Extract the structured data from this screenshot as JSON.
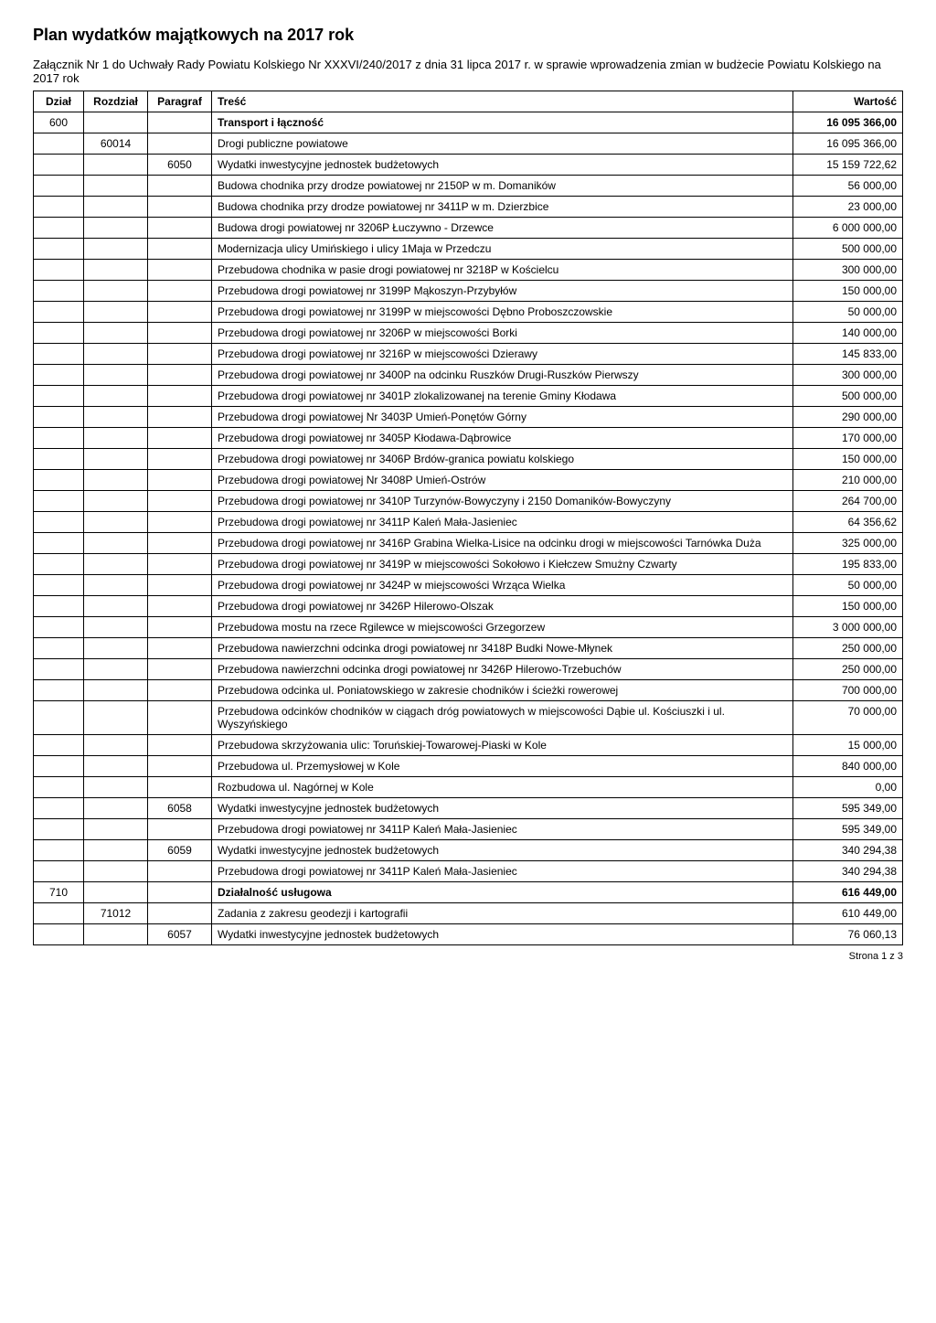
{
  "title": "Plan wydatków majątkowych na 2017 rok",
  "subtitle": "Załącznik Nr 1 do Uchwały Rady Powiatu Kolskiego Nr XXXVI/240/2017 z dnia 31 lipca 2017 r. w sprawie wprowadzenia zmian w budżecie Powiatu Kolskiego na 2017 rok",
  "headers": {
    "dzial": "Dział",
    "rozdzial": "Rozdział",
    "paragraf": "Paragraf",
    "tresc": "Treść",
    "wartosc": "Wartość"
  },
  "rows": [
    {
      "dzial": "600",
      "rozdzial": "",
      "paragraf": "",
      "tresc": "Transport i łączność",
      "wartosc": "16 095 366,00",
      "bold": true
    },
    {
      "dzial": "",
      "rozdzial": "60014",
      "paragraf": "",
      "tresc": "Drogi publiczne powiatowe",
      "wartosc": "16 095 366,00"
    },
    {
      "dzial": "",
      "rozdzial": "",
      "paragraf": "6050",
      "tresc": "Wydatki inwestycyjne jednostek budżetowych",
      "wartosc": "15 159 722,62"
    },
    {
      "dzial": "",
      "rozdzial": "",
      "paragraf": "",
      "tresc": "Budowa chodnika przy drodze powiatowej nr 2150P w m. Domaników",
      "wartosc": "56 000,00"
    },
    {
      "dzial": "",
      "rozdzial": "",
      "paragraf": "",
      "tresc": "Budowa chodnika przy drodze powiatowej nr 3411P w m. Dzierzbice",
      "wartosc": "23 000,00"
    },
    {
      "dzial": "",
      "rozdzial": "",
      "paragraf": "",
      "tresc": "Budowa drogi powiatowej nr 3206P Łuczywno - Drzewce",
      "wartosc": "6 000 000,00"
    },
    {
      "dzial": "",
      "rozdzial": "",
      "paragraf": "",
      "tresc": "Modernizacja ulicy Umińskiego i ulicy 1Maja w Przedczu",
      "wartosc": "500 000,00"
    },
    {
      "dzial": "",
      "rozdzial": "",
      "paragraf": "",
      "tresc": "Przebudowa chodnika w pasie drogi powiatowej nr 3218P w Kościelcu",
      "wartosc": "300 000,00"
    },
    {
      "dzial": "",
      "rozdzial": "",
      "paragraf": "",
      "tresc": "Przebudowa drogi powiatowej nr 3199P Mąkoszyn-Przybyłów",
      "wartosc": "150 000,00"
    },
    {
      "dzial": "",
      "rozdzial": "",
      "paragraf": "",
      "tresc": "Przebudowa drogi powiatowej nr 3199P w miejscowości Dębno Proboszczowskie",
      "wartosc": "50 000,00"
    },
    {
      "dzial": "",
      "rozdzial": "",
      "paragraf": "",
      "tresc": "Przebudowa drogi powiatowej nr 3206P w miejscowości Borki",
      "wartosc": "140 000,00"
    },
    {
      "dzial": "",
      "rozdzial": "",
      "paragraf": "",
      "tresc": "Przebudowa drogi powiatowej nr 3216P w miejscowości Dzierawy",
      "wartosc": "145 833,00"
    },
    {
      "dzial": "",
      "rozdzial": "",
      "paragraf": "",
      "tresc": "Przebudowa drogi powiatowej nr 3400P na odcinku Ruszków Drugi-Ruszków Pierwszy",
      "wartosc": "300 000,00"
    },
    {
      "dzial": "",
      "rozdzial": "",
      "paragraf": "",
      "tresc": "Przebudowa drogi powiatowej nr 3401P zlokalizowanej na terenie Gminy Kłodawa",
      "wartosc": "500 000,00"
    },
    {
      "dzial": "",
      "rozdzial": "",
      "paragraf": "",
      "tresc": "Przebudowa drogi powiatowej Nr 3403P Umień-Ponętów Górny",
      "wartosc": "290 000,00"
    },
    {
      "dzial": "",
      "rozdzial": "",
      "paragraf": "",
      "tresc": "Przebudowa drogi powiatowej nr 3405P Kłodawa-Dąbrowice",
      "wartosc": "170 000,00"
    },
    {
      "dzial": "",
      "rozdzial": "",
      "paragraf": "",
      "tresc": "Przebudowa drogi powiatowej nr 3406P Brdów-granica powiatu kolskiego",
      "wartosc": "150 000,00"
    },
    {
      "dzial": "",
      "rozdzial": "",
      "paragraf": "",
      "tresc": "Przebudowa drogi powiatowej Nr 3408P Umień-Ostrów",
      "wartosc": "210 000,00"
    },
    {
      "dzial": "",
      "rozdzial": "",
      "paragraf": "",
      "tresc": "Przebudowa drogi powiatowej nr 3410P Turzynów-Bowyczyny i 2150 Domaników-Bowyczyny",
      "wartosc": "264 700,00"
    },
    {
      "dzial": "",
      "rozdzial": "",
      "paragraf": "",
      "tresc": "Przebudowa drogi powiatowej nr 3411P Kaleń Mała-Jasieniec",
      "wartosc": "64 356,62"
    },
    {
      "dzial": "",
      "rozdzial": "",
      "paragraf": "",
      "tresc": "Przebudowa drogi powiatowej nr 3416P Grabina Wielka-Lisice na odcinku drogi w miejscowości Tarnówka Duża",
      "wartosc": "325 000,00"
    },
    {
      "dzial": "",
      "rozdzial": "",
      "paragraf": "",
      "tresc": "Przebudowa drogi powiatowej nr 3419P w miejscowości Sokołowo i Kiełczew Smużny Czwarty",
      "wartosc": "195 833,00"
    },
    {
      "dzial": "",
      "rozdzial": "",
      "paragraf": "",
      "tresc": "Przebudowa drogi powiatowej nr 3424P w miejscowości Wrząca Wielka",
      "wartosc": "50 000,00"
    },
    {
      "dzial": "",
      "rozdzial": "",
      "paragraf": "",
      "tresc": "Przebudowa drogi powiatowej nr 3426P Hilerowo-Olszak",
      "wartosc": "150 000,00"
    },
    {
      "dzial": "",
      "rozdzial": "",
      "paragraf": "",
      "tresc": "Przebudowa mostu na rzece Rgilewce w miejscowości Grzegorzew",
      "wartosc": "3 000 000,00"
    },
    {
      "dzial": "",
      "rozdzial": "",
      "paragraf": "",
      "tresc": "Przebudowa nawierzchni odcinka drogi powiatowej nr 3418P Budki Nowe-Młynek",
      "wartosc": "250 000,00"
    },
    {
      "dzial": "",
      "rozdzial": "",
      "paragraf": "",
      "tresc": "Przebudowa nawierzchni odcinka drogi powiatowej nr 3426P Hilerowo-Trzebuchów",
      "wartosc": "250 000,00"
    },
    {
      "dzial": "",
      "rozdzial": "",
      "paragraf": "",
      "tresc": "Przebudowa odcinka ul. Poniatowskiego w zakresie chodników i ścieżki rowerowej",
      "wartosc": "700 000,00"
    },
    {
      "dzial": "",
      "rozdzial": "",
      "paragraf": "",
      "tresc": "Przebudowa odcinków chodników w ciągach dróg powiatowych w miejscowości Dąbie ul. Kościuszki i ul. Wyszyńskiego",
      "wartosc": "70 000,00"
    },
    {
      "dzial": "",
      "rozdzial": "",
      "paragraf": "",
      "tresc": "Przebudowa skrzyżowania ulic: Toruńskiej-Towarowej-Piaski w Kole",
      "wartosc": "15 000,00"
    },
    {
      "dzial": "",
      "rozdzial": "",
      "paragraf": "",
      "tresc": "Przebudowa ul. Przemysłowej w Kole",
      "wartosc": "840 000,00"
    },
    {
      "dzial": "",
      "rozdzial": "",
      "paragraf": "",
      "tresc": "Rozbudowa ul. Nagórnej w Kole",
      "wartosc": "0,00"
    },
    {
      "dzial": "",
      "rozdzial": "",
      "paragraf": "6058",
      "tresc": "Wydatki inwestycyjne jednostek budżetowych",
      "wartosc": "595 349,00"
    },
    {
      "dzial": "",
      "rozdzial": "",
      "paragraf": "",
      "tresc": "Przebudowa drogi powiatowej nr 3411P Kaleń Mała-Jasieniec",
      "wartosc": "595 349,00"
    },
    {
      "dzial": "",
      "rozdzial": "",
      "paragraf": "6059",
      "tresc": "Wydatki inwestycyjne jednostek budżetowych",
      "wartosc": "340 294,38"
    },
    {
      "dzial": "",
      "rozdzial": "",
      "paragraf": "",
      "tresc": "Przebudowa drogi powiatowej nr 3411P Kaleń Mała-Jasieniec",
      "wartosc": "340 294,38"
    },
    {
      "dzial": "710",
      "rozdzial": "",
      "paragraf": "",
      "tresc": "Działalność usługowa",
      "wartosc": "616 449,00",
      "bold": true
    },
    {
      "dzial": "",
      "rozdzial": "71012",
      "paragraf": "",
      "tresc": "Zadania z zakresu geodezji i kartografii",
      "wartosc": "610 449,00"
    },
    {
      "dzial": "",
      "rozdzial": "",
      "paragraf": "6057",
      "tresc": "Wydatki inwestycyjne jednostek budżetowych",
      "wartosc": "76 060,13"
    }
  ],
  "footer": "Strona 1 z 3"
}
